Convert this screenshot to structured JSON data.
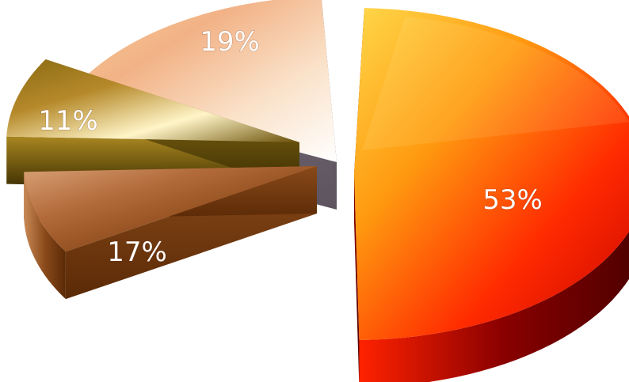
{
  "chart_data": {
    "type": "pie",
    "title": "",
    "legend": "none",
    "slices": [
      {
        "label": "53%",
        "value": 53,
        "top_colors": [
          "#ffd84a",
          "#ff9a10",
          "#ff2a00",
          "#c20000"
        ],
        "side_colors": [
          "#ff2200",
          "#8a0000",
          "#4a0000"
        ]
      },
      {
        "label": "19%",
        "value": 19,
        "top_colors": [
          "#f6cf98",
          "#f2b286",
          "#fae1c8",
          "#ffffff"
        ],
        "side_colors": [
          "#8a7f8a",
          "#6d6470",
          "#5d5460"
        ]
      },
      {
        "label": "11%",
        "value": 11,
        "top_colors": [
          "#8a6a12",
          "#b5892a",
          "#fff5c8",
          "#6a5008"
        ],
        "side_colors": [
          "#3a2c00",
          "#a88620",
          "#3a2c00"
        ]
      },
      {
        "label": "17%",
        "value": 17,
        "top_colors": [
          "#d9a276",
          "#b26a3a",
          "#8a4818",
          "#6a3308"
        ],
        "side_colors": [
          "#c98a57",
          "#8a4a1a",
          "#5a2a06"
        ]
      }
    ]
  }
}
